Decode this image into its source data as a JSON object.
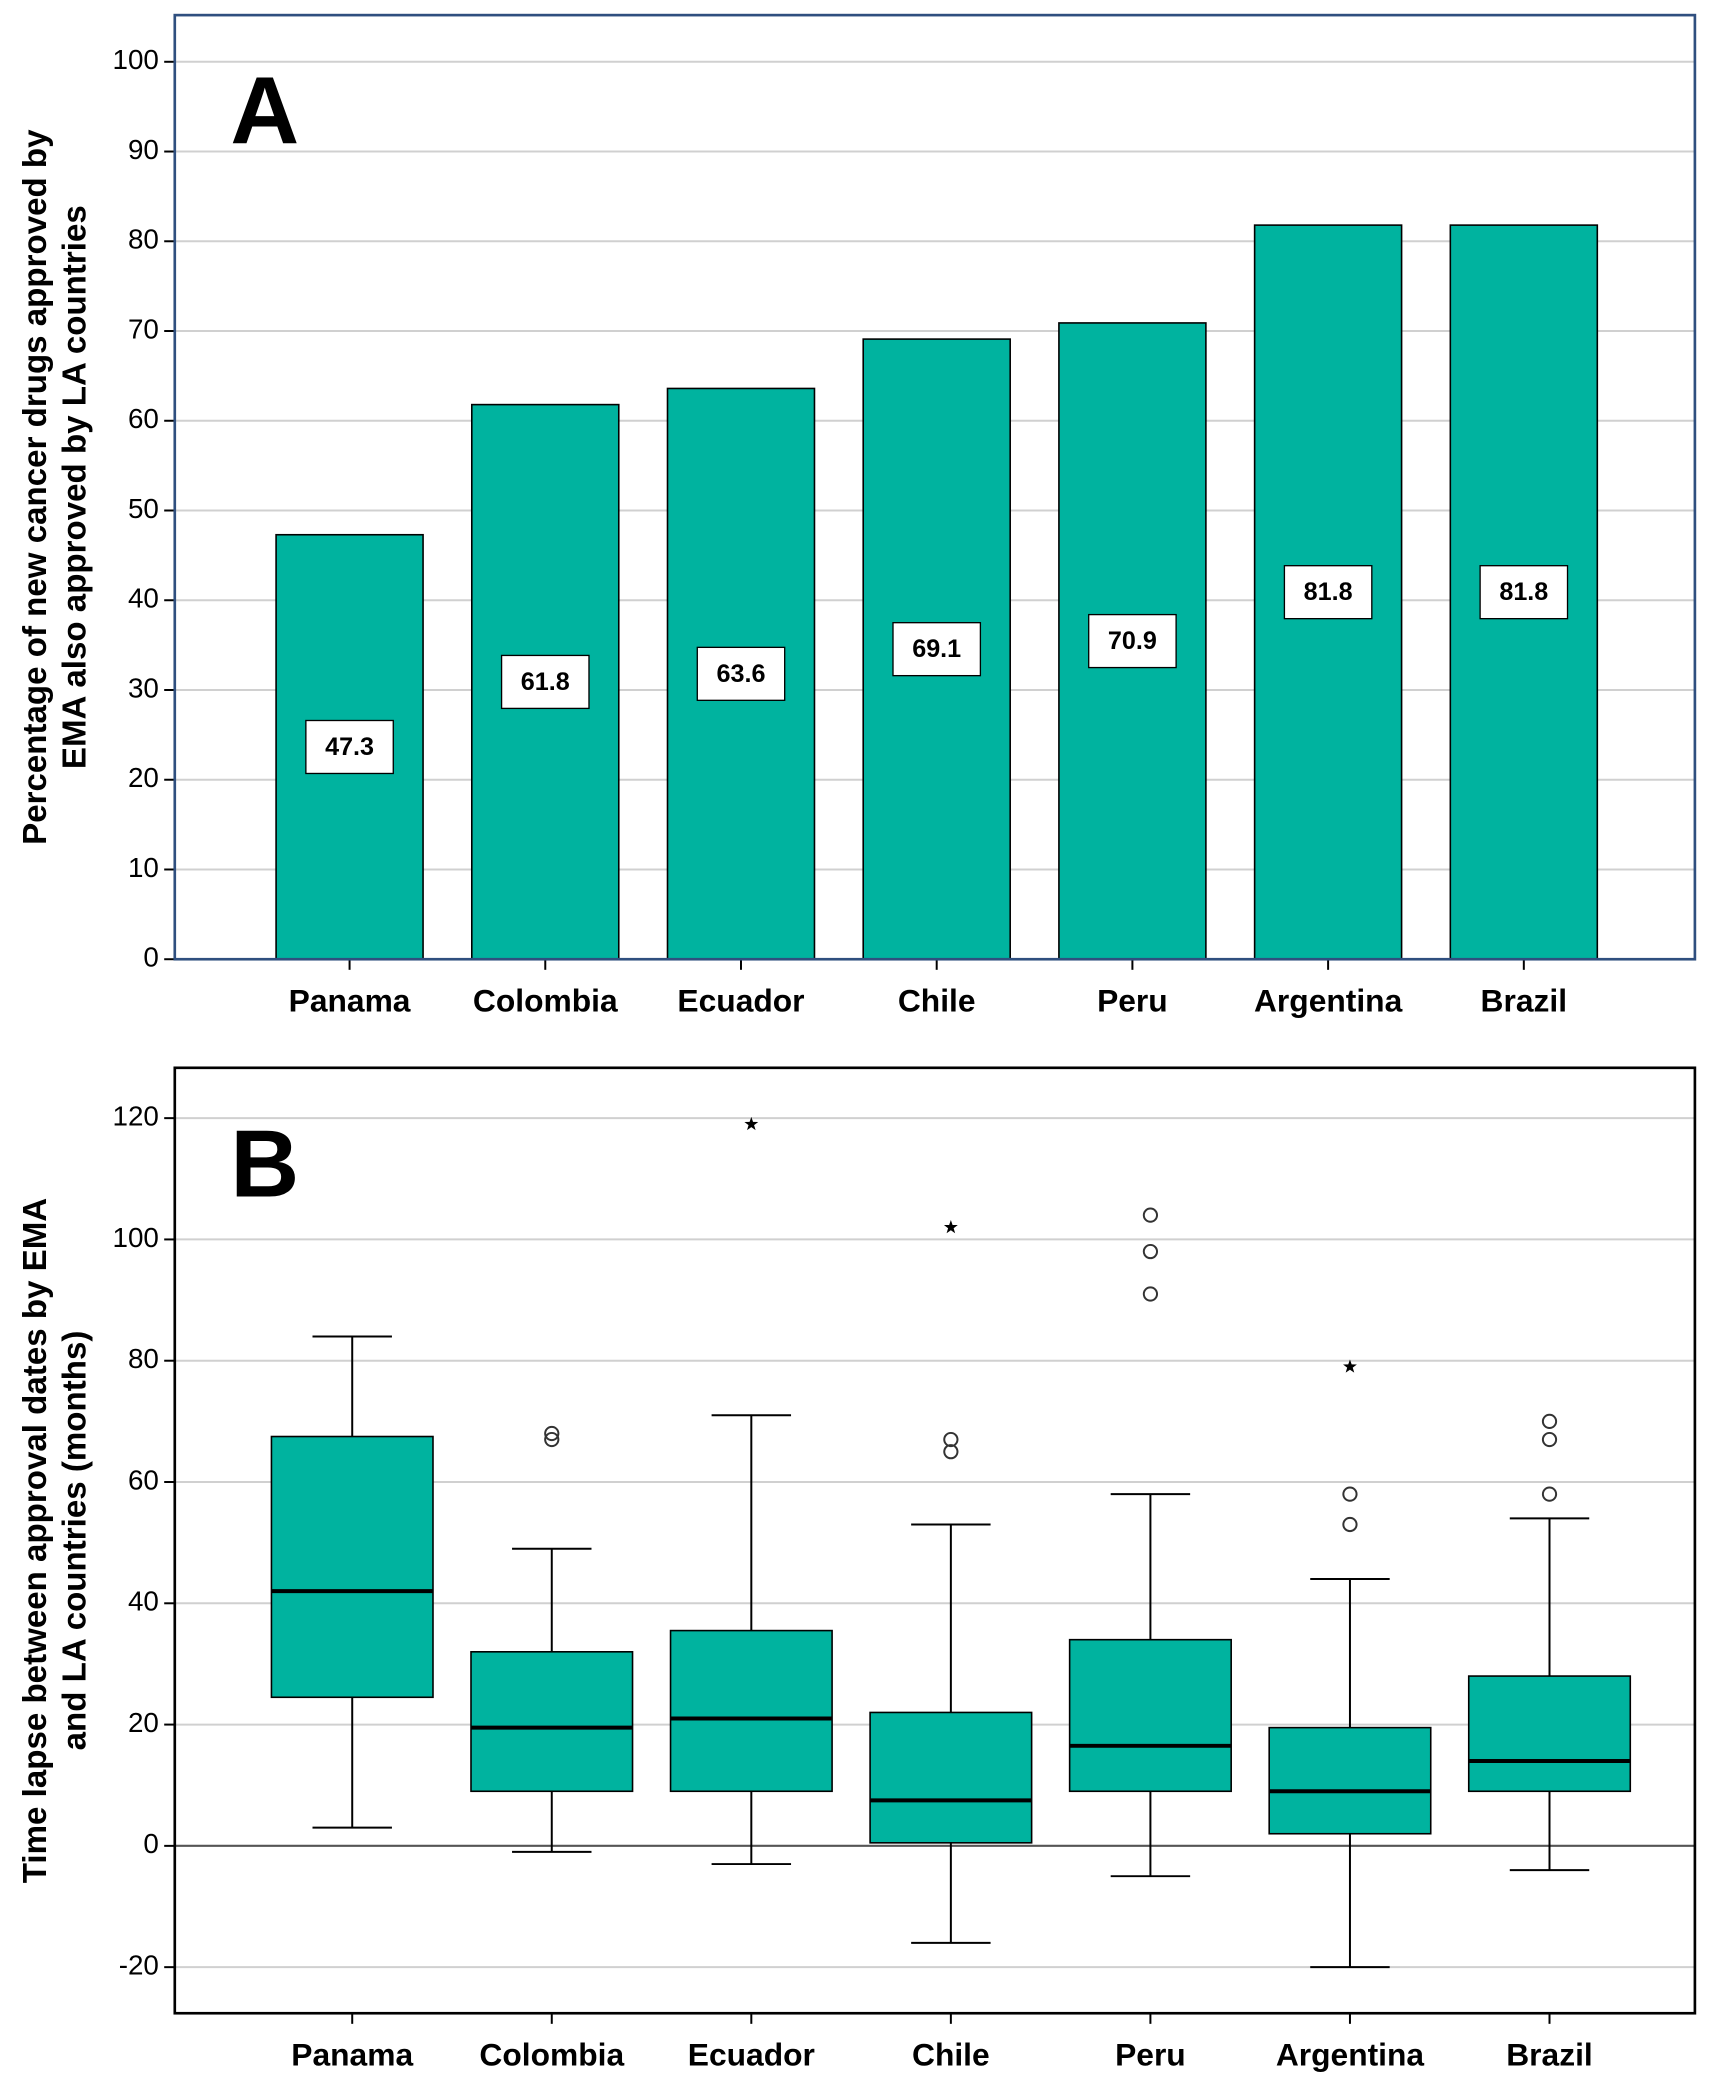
{
  "chart_data": [
    {
      "type": "bar",
      "panel": "A",
      "y_label": [
        "Percentage of new cancer drugs approved by",
        "EMA also approved by LA countries"
      ],
      "categories": [
        "Panama",
        "Colombia",
        "Ecuador",
        "Chile",
        "Peru",
        "Argentina",
        "Brazil"
      ],
      "values": [
        47.3,
        61.8,
        63.6,
        69.1,
        70.9,
        81.8,
        81.8
      ],
      "color": "#00b39f",
      "frame_color": "#2f4f7f",
      "ylim": [
        0,
        105.2
      ],
      "yticks": [
        0,
        10,
        20,
        30,
        40,
        50,
        60,
        70,
        80,
        90,
        100
      ],
      "grid": true
    },
    {
      "type": "box",
      "panel": "B",
      "y_label": [
        "Time lapse between approval dates by EMA",
        "and LA countries (months)"
      ],
      "categories": [
        "Panama",
        "Colombia",
        "Ecuador",
        "Chile",
        "Peru",
        "Argentina",
        "Brazil"
      ],
      "low": [
        3,
        -1,
        -3,
        -16,
        -5,
        -20,
        -4
      ],
      "q1": [
        24.5,
        9,
        9,
        0.5,
        9,
        2,
        9
      ],
      "median": [
        42,
        19.5,
        21,
        7.5,
        16.5,
        9,
        14
      ],
      "q3": [
        67.5,
        32,
        35.5,
        22,
        34,
        19.5,
        28
      ],
      "high": [
        84,
        49,
        71,
        53,
        58,
        44,
        54
      ],
      "outliers": [
        [],
        [
          67,
          68
        ],
        [],
        [
          65,
          67
        ],
        [
          91,
          98,
          104
        ],
        [
          53,
          58
        ],
        [
          58,
          67,
          70
        ]
      ],
      "extremes": [
        [],
        [],
        [
          119
        ],
        [
          102
        ],
        [],
        [
          79
        ],
        []
      ],
      "color": "#00b39f",
      "frame_color": "#000000",
      "ylim": [
        -27.6,
        128.3
      ],
      "yticks": [
        -20,
        0,
        20,
        40,
        60,
        80,
        100,
        120
      ],
      "grid": true
    }
  ]
}
